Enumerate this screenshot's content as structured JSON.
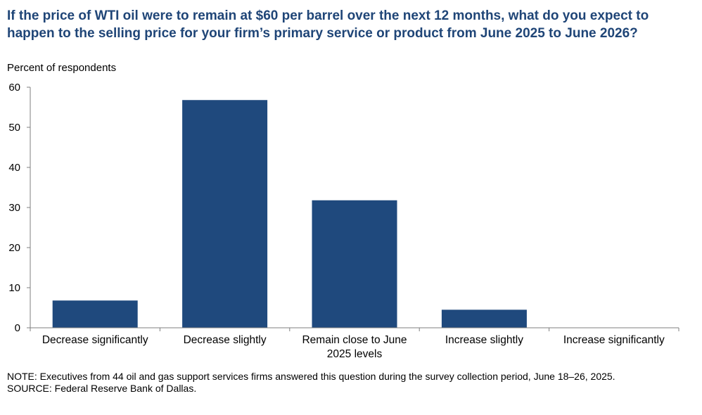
{
  "title": "If the price of WTI oil were to remain at $60 per barrel over the next 12 months, what do you expect to happen to the selling price for your firm’s primary service or product from June 2025 to June 2026?",
  "unit_label": "Percent of respondents",
  "note": "NOTE:  Executives from 44 oil and gas support services firms answered this question during the survey collection period, June 18–26, 2025.",
  "source": "SOURCE:  Federal Reserve Bank of Dallas.",
  "colors": {
    "bar": "#1f497d",
    "title": "#1f4577",
    "axis": "#7f7f7f"
  },
  "chart_data": {
    "type": "bar",
    "categories": [
      [
        "Decrease significantly"
      ],
      [
        "Decrease slightly"
      ],
      [
        "Remain close to June",
        "2025 levels"
      ],
      [
        "Increase slightly"
      ],
      [
        "Increase significantly"
      ]
    ],
    "values": [
      6.8,
      56.8,
      31.8,
      4.5,
      0
    ],
    "ylabel": "Percent of respondents",
    "ylim": [
      0,
      60
    ],
    "yticks": [
      0,
      10,
      20,
      30,
      40,
      50,
      60
    ],
    "grid": false,
    "legend": "none"
  }
}
